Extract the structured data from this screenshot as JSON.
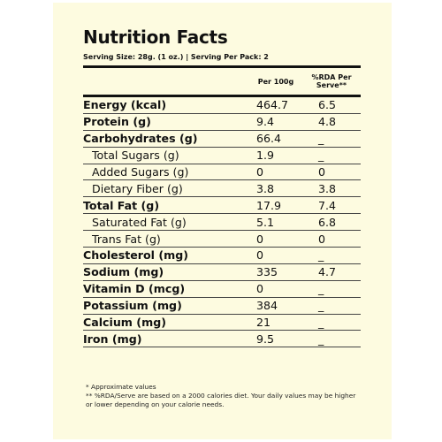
{
  "title": "Nutrition Facts",
  "serving": "Serving Size: 28g. (1 oz.)  |  Serving Per Pack: 2",
  "header": {
    "per100": "Per 100g",
    "rda": "%RDA Per Serve**"
  },
  "rows": [
    {
      "label": "Energy (kcal)",
      "per100": "464.7",
      "rda": "6.5"
    },
    {
      "label": "Protein (g)",
      "per100": "9.4",
      "rda": "4.8"
    },
    {
      "label": "Carbohydrates (g)",
      "per100": "66.4",
      "rda": "_"
    },
    {
      "label": "Total Sugars (g)",
      "per100": "1.9",
      "rda": "_"
    },
    {
      "label": "Added Sugars (g)",
      "per100": "0",
      "rda": "0"
    },
    {
      "label": "Dietary Fiber (g)",
      "per100": "3.8",
      "rda": "3.8"
    },
    {
      "label": "Total Fat (g)",
      "per100": "17.9",
      "rda": "7.4"
    },
    {
      "label": "Saturated Fat (g)",
      "per100": "5.1",
      "rda": "6.8"
    },
    {
      "label": "Trans Fat (g)",
      "per100": "0",
      "rda": "0"
    },
    {
      "label": "Cholesterol (mg)",
      "per100": "0",
      "rda": "_"
    },
    {
      "label": "Sodium (mg)",
      "per100": "335",
      "rda": "4.7"
    },
    {
      "label": "Vitamin D (mcg)",
      "per100": "0",
      "rda": "_"
    },
    {
      "label": "Potassium (mg)",
      "per100": "384",
      "rda": "_"
    },
    {
      "label": "Calcium (mg)",
      "per100": "21",
      "rda": "_"
    },
    {
      "label": "Iron (mg)",
      "per100": "9.5",
      "rda": "_"
    }
  ],
  "notes": {
    "approx": "* Approximate values",
    "rda_note": "** %RDA/Serve are based on a 2000 calories diet. Your daily values may be higher or lower depending on your calorie needs."
  },
  "colors": {
    "background": "#fdfbe0",
    "text": "#111111"
  }
}
